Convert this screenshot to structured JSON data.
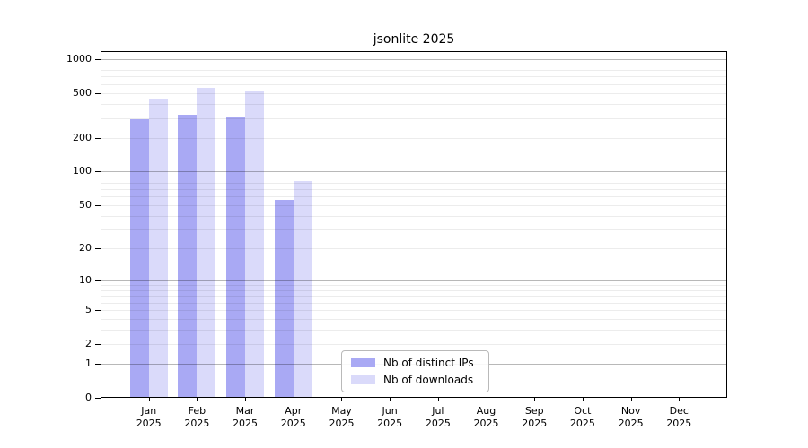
{
  "title": "jsonlite 2025",
  "chart_data": {
    "type": "bar",
    "title": "jsonlite 2025",
    "x_categories": [
      "Jan",
      "Feb",
      "Mar",
      "Apr",
      "May",
      "Jun",
      "Jul",
      "Aug",
      "Sep",
      "Oct",
      "Nov",
      "Dec"
    ],
    "x_year": "2025",
    "series": [
      {
        "name": "Nb of distinct IPs",
        "color": "#a9a9f4",
        "values": [
          295,
          320,
          305,
          56,
          null,
          null,
          null,
          null,
          null,
          null,
          null,
          null
        ]
      },
      {
        "name": "Nb of downloads",
        "color": "#dadafa",
        "values": [
          440,
          555,
          520,
          83,
          null,
          null,
          null,
          null,
          null,
          null,
          null,
          null
        ]
      }
    ],
    "y_axis": {
      "ticks": [
        "1000",
        "500",
        "200",
        "100",
        "50",
        "20",
        "10",
        "5",
        "2",
        "1",
        "0"
      ],
      "scale": "log1p",
      "range": [
        0,
        1000
      ]
    },
    "grid": "horizontal",
    "legend_position": "bottom-center"
  }
}
